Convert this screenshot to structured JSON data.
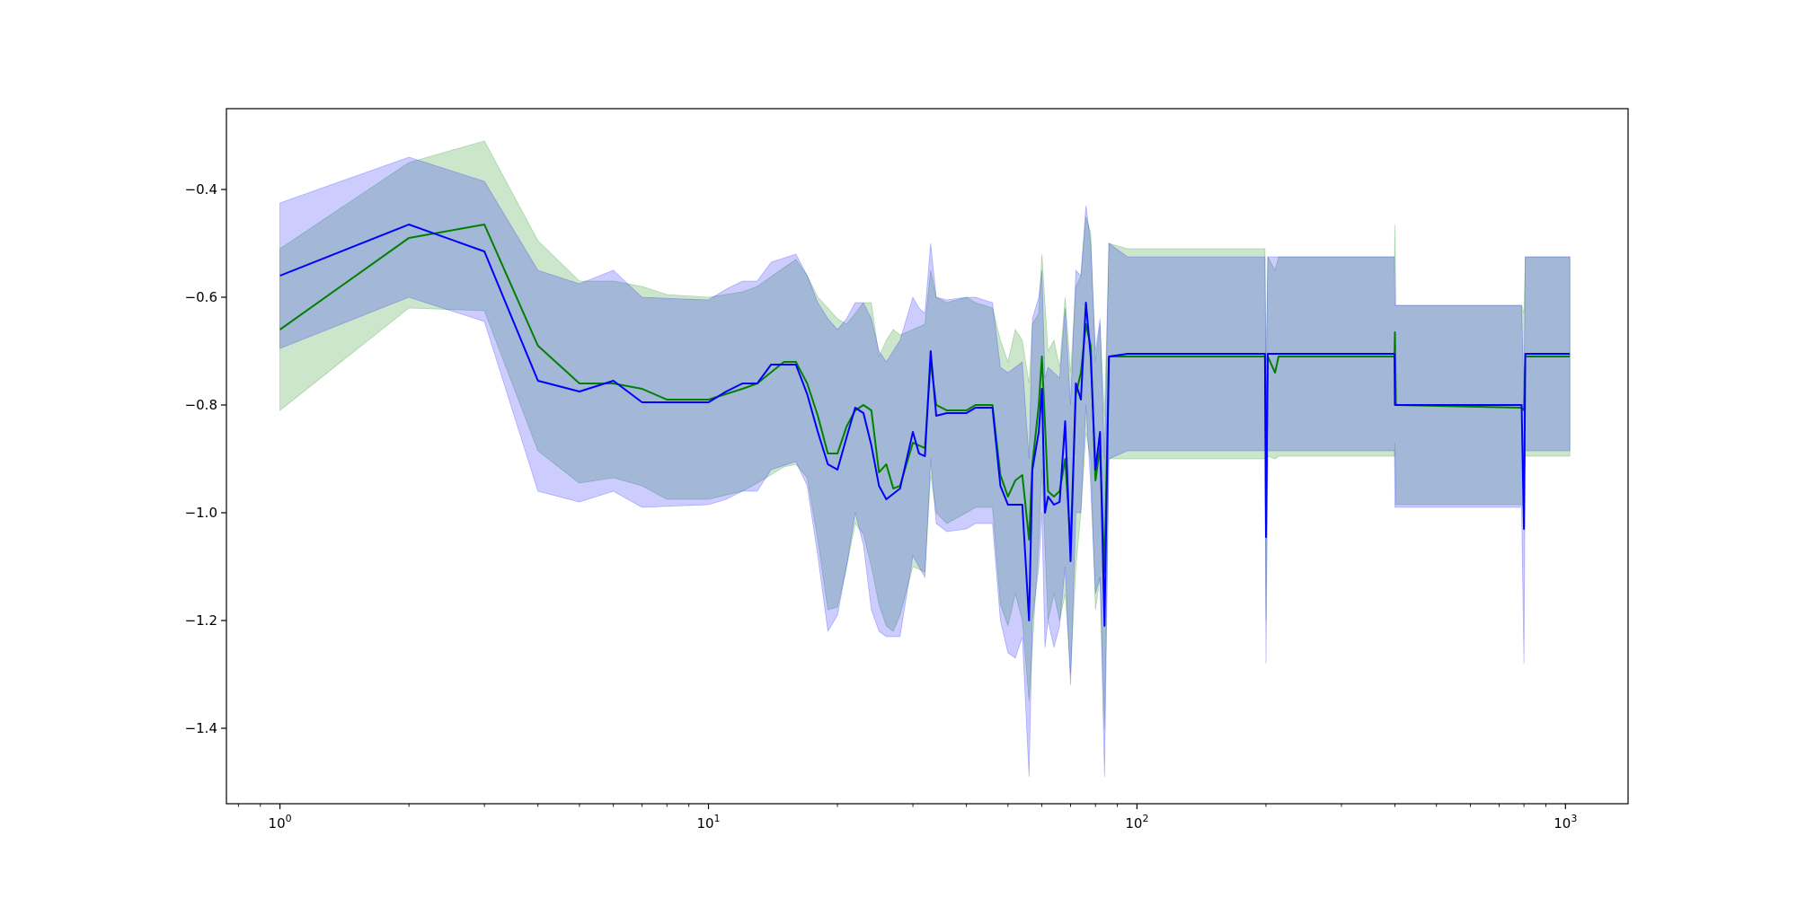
{
  "chart_data": {
    "type": "area",
    "title": "",
    "xlabel": "",
    "ylabel": "",
    "xscale": "log",
    "xlim": [
      0.75,
      1400
    ],
    "ylim": [
      -1.54,
      -0.25
    ],
    "grid": false,
    "legend": "none",
    "x_ticks": [
      {
        "value": 1,
        "base": "10",
        "exp": "0"
      },
      {
        "value": 10,
        "base": "10",
        "exp": "1"
      },
      {
        "value": 100,
        "base": "10",
        "exp": "2"
      },
      {
        "value": 1000,
        "base": "10",
        "exp": "3"
      }
    ],
    "y_ticks": [
      {
        "value": -0.4,
        "label": "−0.4"
      },
      {
        "value": -0.6,
        "label": "−0.6"
      },
      {
        "value": -0.8,
        "label": "−0.8"
      },
      {
        "value": -1.0,
        "label": "−1.0"
      },
      {
        "value": -1.2,
        "label": "−1.2"
      },
      {
        "value": -1.4,
        "label": "−1.4"
      }
    ],
    "series": [
      {
        "color": "#008000",
        "band_color": "#008000",
        "points": [
          [
            1,
            -0.66,
            -0.51,
            -0.81
          ],
          [
            2,
            -0.49,
            -0.35,
            -0.62
          ],
          [
            3,
            -0.465,
            -0.31,
            -0.625
          ],
          [
            4,
            -0.69,
            -0.495,
            -0.885
          ],
          [
            5,
            -0.76,
            -0.57,
            -0.945
          ],
          [
            6,
            -0.76,
            -0.57,
            -0.935
          ],
          [
            7,
            -0.77,
            -0.58,
            -0.95
          ],
          [
            8,
            -0.79,
            -0.595,
            -0.975
          ],
          [
            10,
            -0.79,
            -0.6,
            -0.975
          ],
          [
            12,
            -0.77,
            -0.59,
            -0.96
          ],
          [
            13,
            -0.76,
            -0.58,
            -0.945
          ],
          [
            15,
            -0.72,
            -0.545,
            -0.915
          ],
          [
            16,
            -0.72,
            -0.53,
            -0.91
          ],
          [
            17,
            -0.76,
            -0.56,
            -0.935
          ],
          [
            18,
            -0.82,
            -0.6,
            -1.05
          ],
          [
            19,
            -0.89,
            -0.62,
            -1.18
          ],
          [
            20,
            -0.89,
            -0.64,
            -1.175
          ],
          [
            21,
            -0.84,
            -0.65,
            -1.1
          ],
          [
            22,
            -0.81,
            -0.63,
            -1.02
          ],
          [
            23,
            -0.8,
            -0.61,
            -1.04
          ],
          [
            24,
            -0.81,
            -0.61,
            -1.1
          ],
          [
            25,
            -0.925,
            -0.71,
            -1.17
          ],
          [
            26,
            -0.91,
            -0.68,
            -1.21
          ],
          [
            27,
            -0.955,
            -0.66,
            -1.22
          ],
          [
            28,
            -0.95,
            -0.67,
            -1.19
          ],
          [
            30,
            -0.87,
            -0.66,
            -1.1
          ],
          [
            32,
            -0.88,
            -0.65,
            -1.11
          ],
          [
            33,
            -0.72,
            -0.55,
            -0.93
          ],
          [
            34,
            -0.8,
            -0.6,
            -1.0
          ],
          [
            36,
            -0.81,
            -0.61,
            -1.02
          ],
          [
            40,
            -0.81,
            -0.6,
            -1.0
          ],
          [
            42,
            -0.8,
            -0.61,
            -0.99
          ],
          [
            46,
            -0.8,
            -0.62,
            -0.99
          ],
          [
            48,
            -0.93,
            -0.68,
            -1.17
          ],
          [
            50,
            -0.97,
            -0.72,
            -1.21
          ],
          [
            52,
            -0.94,
            -0.66,
            -1.15
          ],
          [
            54,
            -0.93,
            -0.68,
            -1.2
          ],
          [
            56,
            -1.05,
            -0.76,
            -1.35
          ],
          [
            57,
            -0.91,
            -0.65,
            -1.25
          ],
          [
            59,
            -0.8,
            -0.63,
            -1.05
          ],
          [
            60,
            -0.71,
            -0.52,
            -0.92
          ],
          [
            62,
            -0.96,
            -0.7,
            -1.2
          ],
          [
            64,
            -0.97,
            -0.68,
            -1.15
          ],
          [
            66,
            -0.96,
            -0.73,
            -1.2
          ],
          [
            68,
            -0.9,
            -0.6,
            -1.15
          ],
          [
            70,
            -1.06,
            -0.74,
            -1.3
          ],
          [
            72,
            -0.78,
            -0.58,
            -1.1
          ],
          [
            74,
            -0.74,
            -0.56,
            -1.0
          ],
          [
            76,
            -0.65,
            -0.45,
            -0.85
          ],
          [
            78,
            -0.69,
            -0.48,
            -0.9
          ],
          [
            80,
            -0.94,
            -0.72,
            -1.18
          ],
          [
            82,
            -0.88,
            -0.65,
            -1.12
          ],
          [
            84,
            -1.11,
            -0.82,
            -1.4
          ],
          [
            86,
            -0.71,
            -0.5,
            -0.9
          ],
          [
            95,
            -0.71,
            -0.51,
            -0.9
          ],
          [
            199,
            -0.71,
            -0.51,
            -0.9
          ],
          [
            200,
            -1.0,
            -0.72,
            -1.2
          ],
          [
            202,
            -0.71,
            -0.525,
            -0.895
          ],
          [
            210,
            -0.74,
            -0.55,
            -0.9
          ],
          [
            214,
            -0.71,
            -0.525,
            -0.895
          ],
          [
            399,
            -0.71,
            -0.525,
            -0.895
          ],
          [
            400,
            -0.665,
            -0.465,
            -0.87
          ],
          [
            402,
            -0.8,
            -0.615,
            -0.985
          ],
          [
            790,
            -0.805,
            -0.615,
            -0.985
          ],
          [
            800,
            -0.81,
            -0.63,
            -0.99
          ],
          [
            806,
            -0.71,
            -0.525,
            -0.895
          ],
          [
            1024,
            -0.71,
            -0.525,
            -0.895
          ]
        ]
      },
      {
        "color": "#0000ff",
        "band_color": "#0000ff",
        "points": [
          [
            1,
            -0.56,
            -0.425,
            -0.695
          ],
          [
            2,
            -0.465,
            -0.34,
            -0.6
          ],
          [
            3,
            -0.515,
            -0.385,
            -0.645
          ],
          [
            4,
            -0.755,
            -0.55,
            -0.96
          ],
          [
            5,
            -0.775,
            -0.575,
            -0.98
          ],
          [
            6,
            -0.755,
            -0.55,
            -0.96
          ],
          [
            7,
            -0.795,
            -0.6,
            -0.99
          ],
          [
            10,
            -0.795,
            -0.605,
            -0.985
          ],
          [
            11,
            -0.775,
            -0.585,
            -0.975
          ],
          [
            12,
            -0.76,
            -0.57,
            -0.96
          ],
          [
            13,
            -0.76,
            -0.57,
            -0.96
          ],
          [
            14,
            -0.725,
            -0.535,
            -0.92
          ],
          [
            16,
            -0.725,
            -0.52,
            -0.905
          ],
          [
            17,
            -0.78,
            -0.56,
            -0.95
          ],
          [
            18,
            -0.85,
            -0.61,
            -1.08
          ],
          [
            19,
            -0.91,
            -0.64,
            -1.22
          ],
          [
            20,
            -0.92,
            -0.66,
            -1.19
          ],
          [
            21,
            -0.86,
            -0.64,
            -1.1
          ],
          [
            22,
            -0.805,
            -0.61,
            -1.0
          ],
          [
            23,
            -0.815,
            -0.61,
            -1.06
          ],
          [
            24,
            -0.875,
            -0.64,
            -1.18
          ],
          [
            25,
            -0.95,
            -0.7,
            -1.22
          ],
          [
            26,
            -0.975,
            -0.72,
            -1.23
          ],
          [
            28,
            -0.955,
            -0.68,
            -1.23
          ],
          [
            30,
            -0.85,
            -0.6,
            -1.08
          ],
          [
            31,
            -0.89,
            -0.62,
            -1.1
          ],
          [
            32,
            -0.895,
            -0.63,
            -1.12
          ],
          [
            33,
            -0.7,
            -0.5,
            -0.9
          ],
          [
            34,
            -0.82,
            -0.6,
            -1.02
          ],
          [
            36,
            -0.815,
            -0.605,
            -1.035
          ],
          [
            40,
            -0.815,
            -0.6,
            -1.03
          ],
          [
            42,
            -0.805,
            -0.6,
            -1.02
          ],
          [
            46,
            -0.805,
            -0.61,
            -1.02
          ],
          [
            48,
            -0.95,
            -0.73,
            -1.2
          ],
          [
            50,
            -0.985,
            -0.74,
            -1.26
          ],
          [
            52,
            -0.985,
            -0.73,
            -1.27
          ],
          [
            54,
            -0.985,
            -0.72,
            -1.23
          ],
          [
            56,
            -1.2,
            -0.9,
            -1.49
          ],
          [
            57,
            -0.92,
            -0.64,
            -1.2
          ],
          [
            59,
            -0.85,
            -0.6,
            -1.1
          ],
          [
            60,
            -0.77,
            -0.55,
            -1.0
          ],
          [
            61,
            -1.0,
            -0.75,
            -1.25
          ],
          [
            62,
            -0.97,
            -0.73,
            -1.2
          ],
          [
            64,
            -0.985,
            -0.74,
            -1.25
          ],
          [
            66,
            -0.98,
            -0.75,
            -1.21
          ],
          [
            68,
            -0.83,
            -0.62,
            -1.1
          ],
          [
            70,
            -1.09,
            -0.8,
            -1.32
          ],
          [
            72,
            -0.76,
            -0.55,
            -1.0
          ],
          [
            74,
            -0.79,
            -0.56,
            -1.0
          ],
          [
            76,
            -0.61,
            -0.43,
            -0.8
          ],
          [
            78,
            -0.71,
            -0.5,
            -0.95
          ],
          [
            80,
            -0.92,
            -0.7,
            -1.15
          ],
          [
            82,
            -0.85,
            -0.64,
            -1.12
          ],
          [
            84,
            -1.21,
            -0.9,
            -1.49
          ],
          [
            86,
            -0.71,
            -0.5,
            -0.9
          ],
          [
            95,
            -0.705,
            -0.525,
            -0.885
          ],
          [
            199,
            -0.705,
            -0.525,
            -0.885
          ],
          [
            200,
            -1.045,
            -0.8,
            -1.28
          ],
          [
            202,
            -0.705,
            -0.525,
            -0.885
          ],
          [
            214,
            -0.705,
            -0.525,
            -0.885
          ],
          [
            399,
            -0.705,
            -0.525,
            -0.885
          ],
          [
            400,
            -0.8,
            -0.615,
            -0.99
          ],
          [
            402,
            -0.8,
            -0.615,
            -0.99
          ],
          [
            790,
            -0.8,
            -0.615,
            -0.99
          ],
          [
            800,
            -1.03,
            -0.78,
            -1.28
          ],
          [
            806,
            -0.705,
            -0.525,
            -0.885
          ],
          [
            1024,
            -0.705,
            -0.525,
            -0.885
          ]
        ]
      }
    ]
  }
}
